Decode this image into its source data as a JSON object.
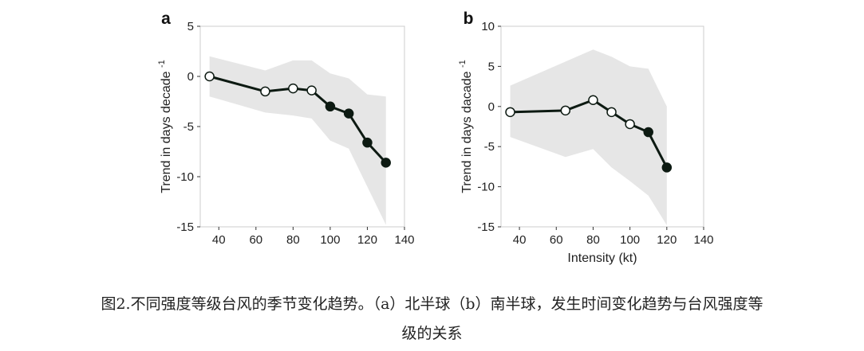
{
  "caption": {
    "line1": "图2.不同强度等级台风的季节变化趋势。（a）北半球（b）南半球，发生时间变化趋势与台风强度等",
    "line2": "级的关系"
  },
  "colors": {
    "band": "#e6e6e6",
    "line": "#0d1a12",
    "filled_marker": "#0d1a12",
    "open_marker": "#ffffff",
    "frame": "#cccccc"
  },
  "chart_data": [
    {
      "type": "line",
      "panel_label": "a",
      "xlabel": "",
      "ylabel": "Trend in days decade",
      "ylabel_superscript": "-1",
      "xlim": [
        30,
        140
      ],
      "ylim": [
        -15,
        5
      ],
      "xticks": [
        40,
        60,
        80,
        100,
        120,
        140
      ],
      "yticks": [
        5,
        0,
        -5,
        -10,
        -15
      ],
      "grid": false,
      "x": [
        35,
        65,
        80,
        90,
        100,
        110,
        120,
        130
      ],
      "y": [
        0.0,
        -1.5,
        -1.2,
        -1.4,
        -3.0,
        -3.7,
        -6.6,
        -8.6
      ],
      "significant": [
        false,
        false,
        false,
        false,
        true,
        true,
        true,
        true
      ],
      "band_x": [
        35,
        65,
        80,
        90,
        100,
        110,
        120,
        130
      ],
      "band_upper": [
        2.0,
        0.6,
        1.6,
        1.6,
        0.3,
        -0.2,
        -1.8,
        -2.0
      ],
      "band_lower": [
        -2.0,
        -3.6,
        -3.9,
        -4.2,
        -6.4,
        -7.2,
        -11.0,
        -14.8
      ]
    },
    {
      "type": "line",
      "panel_label": "b",
      "xlabel": "Intensity (kt)",
      "ylabel": "Trend in days dacade",
      "ylabel_superscript": "-1",
      "xlim": [
        30,
        140
      ],
      "ylim": [
        -15,
        10
      ],
      "xticks": [
        40,
        60,
        80,
        100,
        120,
        140
      ],
      "yticks": [
        10,
        5,
        0,
        -5,
        -10,
        -15
      ],
      "grid": false,
      "x": [
        35,
        65,
        80,
        90,
        100,
        110,
        120
      ],
      "y": [
        -0.7,
        -0.5,
        0.8,
        -0.7,
        -2.2,
        -3.2,
        -7.6
      ],
      "significant": [
        false,
        false,
        false,
        false,
        false,
        true,
        true
      ],
      "band_x": [
        35,
        65,
        80,
        90,
        100,
        110,
        120
      ],
      "band_upper": [
        2.6,
        5.6,
        7.1,
        6.2,
        5.0,
        4.7,
        0.0
      ],
      "band_lower": [
        -3.8,
        -6.3,
        -5.3,
        -7.6,
        -9.3,
        -11.1,
        -14.8
      ]
    }
  ]
}
